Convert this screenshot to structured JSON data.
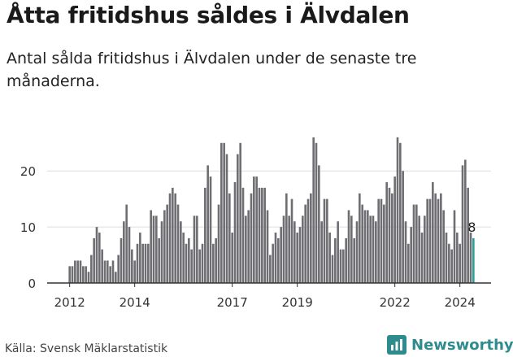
{
  "header": {
    "title": "Åtta fritidshus såldes i Älvdalen",
    "subtitle": "Antal sålda fritidshus i Älvdalen under de senaste tre månaderna."
  },
  "footer": {
    "source": "Källa: Svensk Mäklarstatistik",
    "brand": "Newsworthy"
  },
  "colors": {
    "bar": "#6e6e72",
    "highlight": "#2a9d9a",
    "brand": "#2e8b8e",
    "axis": "#333333",
    "grid": "#dddddd"
  },
  "chart_data": {
    "type": "bar",
    "title": "Åtta fritidshus såldes i Älvdalen",
    "xlabel": "",
    "ylabel": "",
    "ylim": [
      0,
      27
    ],
    "yticks": [
      0,
      10,
      20
    ],
    "xticks": [
      {
        "label": "2012",
        "index": 0
      },
      {
        "label": "2014",
        "index": 24
      },
      {
        "label": "2017",
        "index": 60
      },
      {
        "label": "2019",
        "index": 84
      },
      {
        "label": "2022",
        "index": 120
      },
      {
        "label": "2024",
        "index": 144
      }
    ],
    "values": [
      3,
      3,
      4,
      4,
      4,
      3,
      3,
      2,
      5,
      8,
      10,
      9,
      6,
      4,
      4,
      3,
      4,
      2,
      5,
      8,
      11,
      14,
      10,
      6,
      4,
      7,
      9,
      7,
      7,
      7,
      13,
      12,
      12,
      8,
      11,
      13,
      14,
      16,
      17,
      16,
      14,
      11,
      9,
      7,
      8,
      6,
      12,
      12,
      6,
      7,
      17,
      21,
      19,
      7,
      8,
      14,
      25,
      25,
      23,
      16,
      9,
      18,
      23,
      25,
      17,
      12,
      13,
      16,
      19,
      19,
      17,
      17,
      17,
      13,
      5,
      7,
      9,
      8,
      10,
      12,
      16,
      12,
      15,
      11,
      9,
      10,
      12,
      14,
      15,
      16,
      26,
      25,
      21,
      11,
      15,
      15,
      9,
      5,
      8,
      11,
      6,
      6,
      8,
      13,
      12,
      8,
      11,
      16,
      14,
      13,
      13,
      12,
      12,
      11,
      15,
      15,
      14,
      18,
      17,
      16,
      19,
      26,
      25,
      20,
      11,
      7,
      10,
      14,
      14,
      12,
      9,
      12,
      15,
      15,
      18,
      16,
      15,
      16,
      13,
      9,
      7,
      6,
      13,
      9,
      7,
      21,
      22,
      17,
      9,
      8
    ],
    "highlight_index": 149,
    "highlight_label": "8"
  }
}
